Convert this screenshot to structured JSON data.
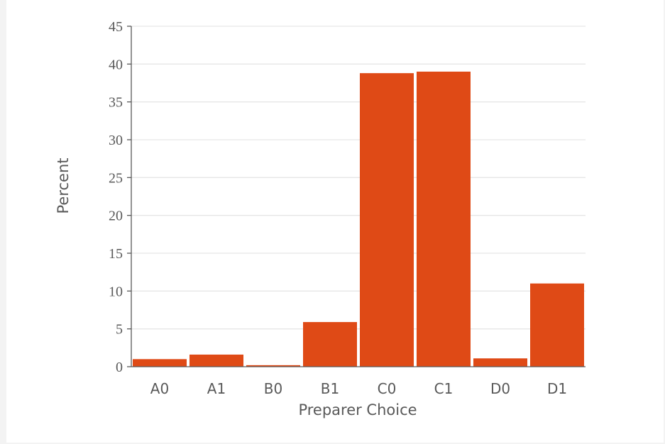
{
  "colors": {
    "bar": "#df4a16",
    "grid": "#e6e6e6",
    "axis": "#595959",
    "text": "#595959"
  },
  "chart_data": {
    "type": "bar",
    "title": "",
    "xlabel": "Preparer Choice",
    "ylabel": "Percent",
    "categories": [
      "A0",
      "A1",
      "B0",
      "B1",
      "C0",
      "C1",
      "D0",
      "D1"
    ],
    "values": [
      1.0,
      1.6,
      0.2,
      5.9,
      38.8,
      39.0,
      1.1,
      11.0
    ],
    "ylim": [
      0,
      45
    ],
    "yticks": [
      0,
      5,
      10,
      15,
      20,
      25,
      30,
      35,
      40,
      45
    ],
    "grid": true,
    "legend": "none"
  }
}
